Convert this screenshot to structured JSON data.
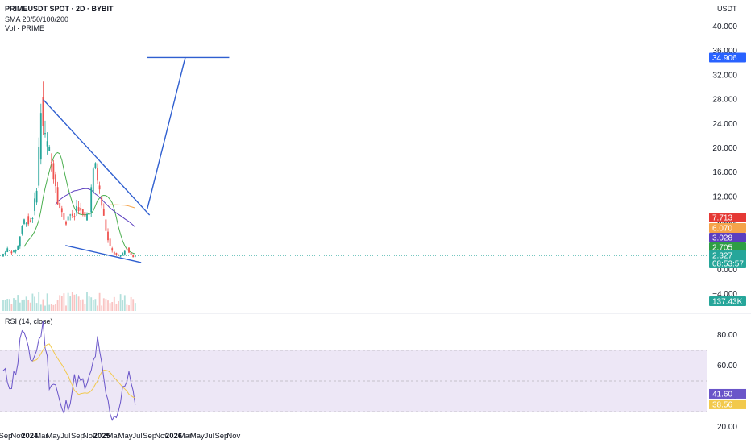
{
  "header": {
    "symbol": "PRIMEUSDT SPOT · 2D · BYBIT",
    "sma": "SMA 20/50/100/200",
    "vol": "Vol · PRIME",
    "currency": "USDT",
    "rsi_label": "RSI (14, close)"
  },
  "colors": {
    "trend": "#2f5fd0",
    "sma20": "#4caf50",
    "sma50": "#5b3fbf",
    "sma100": "#f5a34a",
    "sma200": "#e53935",
    "up": "#26a69a",
    "down": "#ef5350",
    "rsi": "#6a55c9",
    "rsi_ma": "#f2c94c",
    "rsi_band": "#ede7f6"
  },
  "chart_data": [
    {
      "type": "candlestick",
      "title": "PRIMEUSDT SPOT · 2D · BYBIT",
      "ylabel": "USDT",
      "y_ticks": [
        "40.000",
        "36.000",
        "32.000",
        "28.000",
        "24.000",
        "20.000",
        "16.000",
        "12.000",
        "8.000",
        "4.000",
        "0.000",
        "−4.000"
      ],
      "ylim": [
        -4,
        40
      ],
      "x_ticks": [
        "Sep",
        "Nov",
        "2024",
        "Mar",
        "May",
        "Jul",
        "Sep",
        "Nov",
        "2025",
        "Mar",
        "May",
        "Jul",
        "Sep",
        "Nov",
        "2026",
        "Mar",
        "May",
        "Jul",
        "Sep",
        "Nov"
      ],
      "price_path": [
        [
          "2023-08-20",
          2.2
        ],
        [
          "2023-09-20",
          3.4
        ],
        [
          "2023-10-20",
          2.8
        ],
        [
          "2023-11-15",
          4.0
        ],
        [
          "2023-12-01",
          7.0
        ],
        [
          "2023-12-20",
          8.5
        ],
        [
          "2024-01-10",
          7.5
        ],
        [
          "2024-02-01",
          9.5
        ],
        [
          "2024-02-20",
          15.0
        ],
        [
          "2024-03-10",
          27.0
        ],
        [
          "2024-03-25",
          22.0
        ],
        [
          "2024-04-15",
          20.0
        ],
        [
          "2024-05-05",
          17.0
        ],
        [
          "2024-05-20",
          15.0
        ],
        [
          "2024-06-05",
          11.0
        ],
        [
          "2024-06-25",
          9.0
        ],
        [
          "2024-07-15",
          8.0
        ],
        [
          "2024-08-01",
          9.5
        ],
        [
          "2024-08-20",
          8.0
        ],
        [
          "2024-09-10",
          11.0
        ],
        [
          "2024-10-01",
          9.0
        ],
        [
          "2024-10-20",
          8.5
        ],
        [
          "2024-11-10",
          10.0
        ],
        [
          "2024-11-25",
          15.0
        ],
        [
          "2024-12-10",
          17.5
        ],
        [
          "2024-12-25",
          14.0
        ],
        [
          "2025-01-10",
          11.0
        ],
        [
          "2025-01-25",
          8.0
        ],
        [
          "2025-02-10",
          5.0
        ],
        [
          "2025-03-01",
          3.2
        ],
        [
          "2025-03-20",
          2.5
        ],
        [
          "2025-04-10",
          2.1
        ],
        [
          "2025-04-25",
          2.6
        ],
        [
          "2025-05-15",
          3.6
        ],
        [
          "2025-06-01",
          2.8
        ],
        [
          "2025-06-15",
          2.2
        ],
        [
          "2025-06-28",
          2.327
        ]
      ],
      "sma_values": {
        "SMA20": 2.705,
        "SMA50": 3.028,
        "SMA100": 6.07,
        "SMA200": 7.713
      },
      "trendlines": [
        {
          "from": [
            "2024-03-10",
            28.0
          ],
          "to": [
            "2025-09-01",
            9.0
          ]
        },
        {
          "from": [
            "2024-07-01",
            4.0
          ],
          "to": [
            "2025-07-20",
            1.2
          ]
        },
        {
          "from": [
            "2025-08-20",
            10.0
          ],
          "to": [
            "2026-03-01",
            34.906
          ]
        },
        {
          "from": [
            "2025-08-20",
            34.906
          ],
          "to": [
            "2026-10-10",
            34.906
          ]
        }
      ],
      "price_labels": [
        {
          "value": "34.906",
          "color": "#2962ff"
        },
        {
          "value": "7.713",
          "color": "#e53935"
        },
        {
          "value": "6.070",
          "color": "#f5a34a"
        },
        {
          "value": "3.028",
          "color": "#5b3fbf"
        },
        {
          "value": "2.705",
          "color": "#2e9e45"
        },
        {
          "value": "2.327",
          "color": "#26a69a"
        },
        {
          "value": "08:53:57",
          "color": "#26a69a"
        }
      ],
      "volume_label": {
        "value": "137.43K",
        "color": "#26a69a"
      }
    },
    {
      "type": "line",
      "title": "RSI (14, close)",
      "y_ticks": [
        "80.00",
        "60.00",
        "40.00",
        "20.00"
      ],
      "ylim": [
        20,
        90
      ],
      "band": [
        30,
        70
      ],
      "current": {
        "rsi": "41.60",
        "rsi_ma": "38.56"
      },
      "rsi_path": [
        [
          "2023-08-20",
          55
        ],
        [
          "2023-10-01",
          48
        ],
        [
          "2023-11-01",
          62
        ],
        [
          "2023-11-25",
          86
        ],
        [
          "2024-01-01",
          63
        ],
        [
          "2024-02-01",
          68
        ],
        [
          "2024-03-10",
          88
        ],
        [
          "2024-04-10",
          50
        ],
        [
          "2024-05-10",
          48
        ],
        [
          "2024-06-15",
          28
        ],
        [
          "2024-07-20",
          38
        ],
        [
          "2024-08-20",
          52
        ],
        [
          "2024-09-20",
          48
        ],
        [
          "2024-10-20",
          45
        ],
        [
          "2024-11-20",
          62
        ],
        [
          "2024-12-10",
          75
        ],
        [
          "2025-01-05",
          55
        ],
        [
          "2025-02-01",
          35
        ],
        [
          "2025-03-01",
          26
        ],
        [
          "2025-04-01",
          33
        ],
        [
          "2025-05-15",
          57
        ],
        [
          "2025-06-10",
          38
        ],
        [
          "2025-06-28",
          41.6
        ]
      ]
    }
  ]
}
